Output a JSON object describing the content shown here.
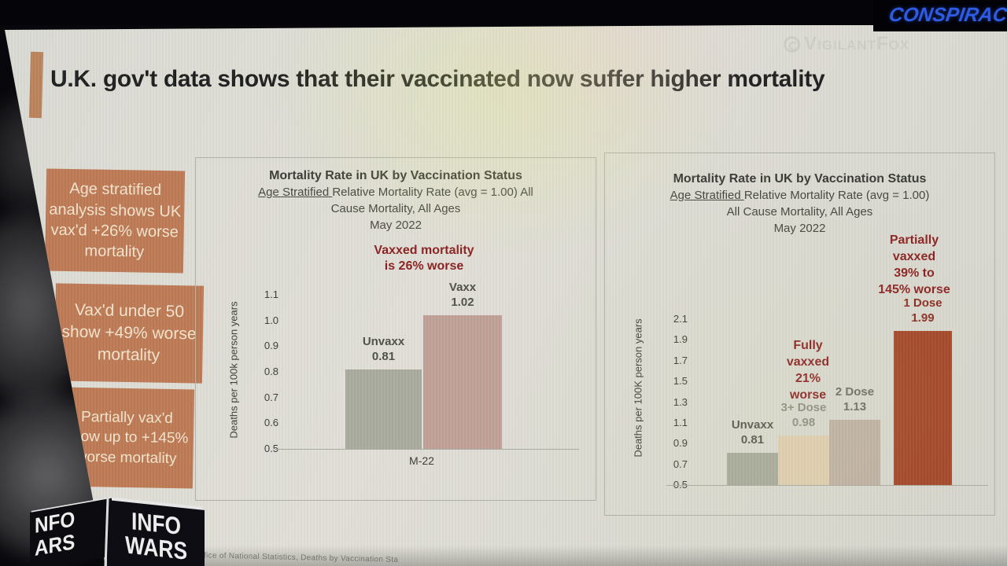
{
  "top_bar": {
    "banner_text": "CONSPIRAC"
  },
  "watermark": {
    "icon": "fingerprint-icon",
    "handle": "VigilantFox"
  },
  "slide": {
    "title": "U.K. gov't data shows that their vaccinated now suffer higher mortality",
    "callouts": [
      {
        "text": "Age stratified analysis shows UK vax'd +26% worse mortality"
      },
      {
        "text": "Vax'd under 50 show +49% worse mortality"
      },
      {
        "text": "Partially vax'd show up to +145% worse mortality"
      }
    ],
    "source_note": "Office of National Statistics, Deaths by Vaccination Sta"
  },
  "branding": {
    "logo_side": "NFO\nARS",
    "logo_front": "INFO\nWARS"
  },
  "colors": {
    "callout_bg": "#bd7a55",
    "annotation_red": "#8b2020",
    "banner_blue": "#2e5be4",
    "unvaxx_bar": "#a7aa9c",
    "vaxx_bar": "#bfa096",
    "dose3_bar": "#e0ceb1",
    "dose2_bar": "#bfb1a4",
    "dose1_bar": "#a34527"
  },
  "chart_data": [
    {
      "type": "bar",
      "title": "Mortality Rate in UK by Vaccination Status",
      "subtitle_underlined": "Age Stratified ",
      "subtitle_rest": "Relative Mortality Rate (avg = 1.00) All",
      "subtitle_line2": "Cause Mortality, All Ages",
      "subtitle_line3": "May 2022",
      "annotation": "Vaxxed  mortality\nis 26% worse",
      "ylabel": "Deaths per 100k person years",
      "xlabel": "M-22",
      "ylim": [
        0.5,
        1.1
      ],
      "yticks": [
        "1.1",
        "1.0",
        "0.9",
        "0.8",
        "0.7",
        "0.6",
        "0.5"
      ],
      "categories": [
        "Unvaxx",
        "Vaxx"
      ],
      "values": [
        0.81,
        1.02
      ],
      "bar_colors": [
        "#a7aa9c",
        "#bfa096"
      ],
      "label_colors": [
        "#504f49",
        "#504f49"
      ],
      "legend": "none",
      "grid": "off"
    },
    {
      "type": "bar",
      "title": "Mortality Rate in UK by Vaccination Status",
      "subtitle_underlined": "Age Stratified ",
      "subtitle_rest": "Relative Mortality Rate (avg = 1.00)",
      "subtitle_line2": "All Cause Mortality, All Ages",
      "subtitle_line3": "May 2022",
      "annotation_partially": "Partially\nvaxxed\n39% to\n145% worse",
      "annotation_fully": "Fully\nvaxxed\n21%\nworse",
      "ylabel": "Deaths per 100K person years",
      "xlabel": "",
      "ylim": [
        0.5,
        2.1
      ],
      "yticks": [
        "2.1",
        "1.9",
        "1.7",
        "1.5",
        "1.3",
        "1.1",
        "0.9",
        "0.7",
        "0.5"
      ],
      "categories": [
        "Unvaxx",
        "3+ Dose",
        "2 Dose",
        "1 Dose"
      ],
      "values": [
        0.81,
        0.98,
        1.13,
        1.99
      ],
      "bar_colors": [
        "#a7aa9c",
        "#e0ceb1",
        "#bfb1a4",
        "#a34527"
      ],
      "label_colors": [
        "#55544d",
        "#8f8c82",
        "#6e6a62",
        "#8b2a20"
      ],
      "legend": "none",
      "grid": "off"
    }
  ]
}
